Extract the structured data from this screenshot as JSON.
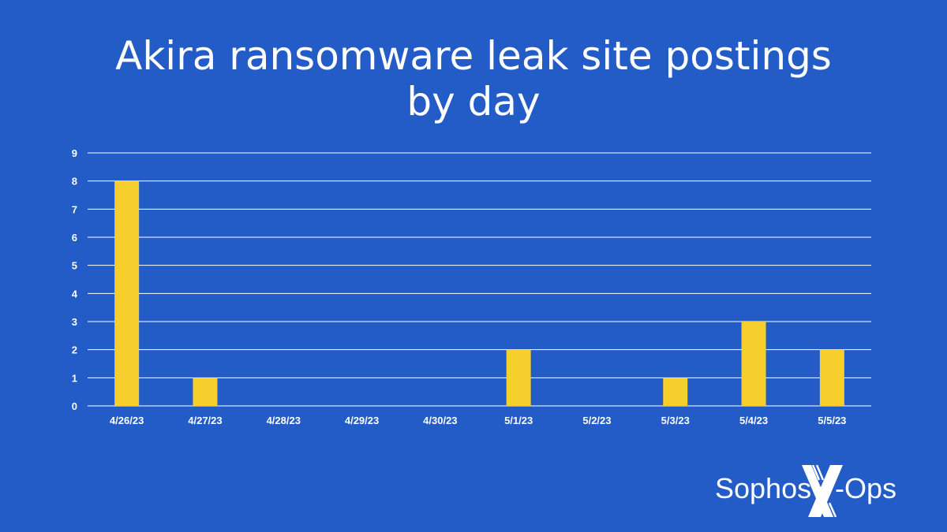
{
  "chart_data": {
    "type": "bar",
    "title_line1": "Akira ransomware leak site postings",
    "title_line2": "by day",
    "categories": [
      "4/26/23",
      "4/27/23",
      "4/28/23",
      "4/29/23",
      "4/30/23",
      "5/1/23",
      "5/2/23",
      "5/3/23",
      "5/4/23",
      "5/5/23"
    ],
    "values": [
      8,
      1,
      0,
      0,
      0,
      2,
      0,
      1,
      3,
      2
    ],
    "xlabel": "",
    "ylabel": "",
    "ylim": [
      0,
      9
    ],
    "yticks": [
      0,
      1,
      2,
      3,
      4,
      5,
      6,
      7,
      8,
      9
    ],
    "grid": true,
    "legend": "none",
    "colors": {
      "background": "#235bc7",
      "bar": "#f7cf2d",
      "grid": "#ffffff",
      "text": "#ffffff"
    }
  },
  "logo": {
    "text_left": "Sophos",
    "text_mid": "X",
    "text_right": "-Ops"
  }
}
